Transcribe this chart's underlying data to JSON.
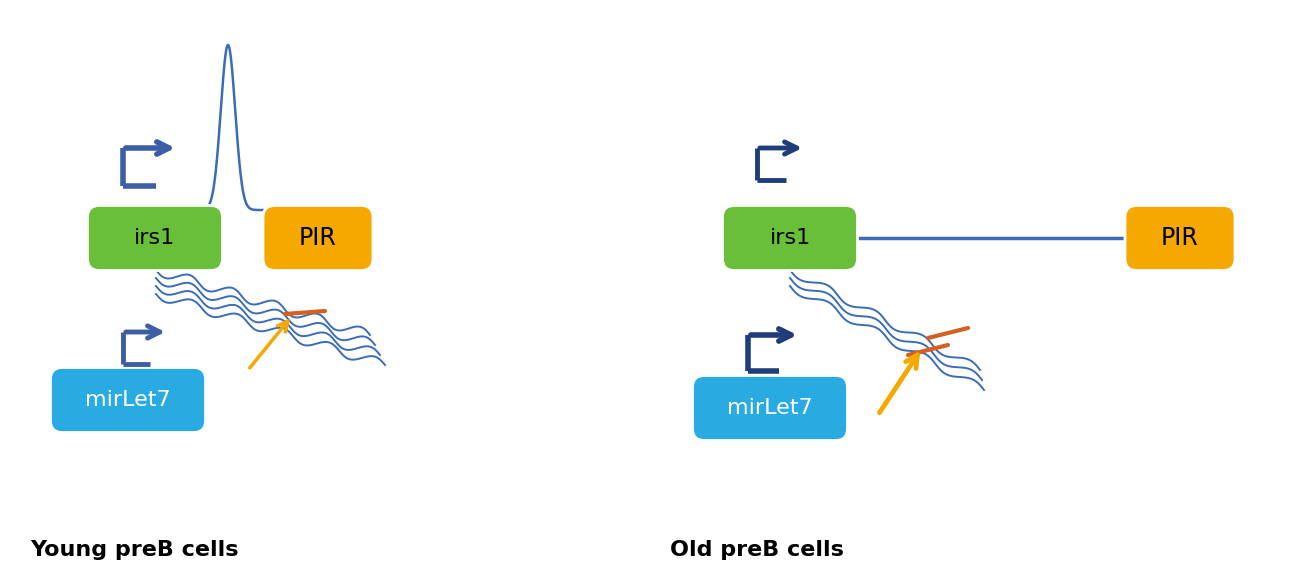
{
  "panel_left_label": "Young preB cells",
  "panel_right_label": "Old preB cells",
  "irs1_label": "irs1",
  "pir_label": "PIR",
  "mirlet7_label": "mirLet7",
  "green_color": "#6abf3a",
  "orange_color": "#f5a800",
  "cyan_color": "#29abe2",
  "dark_blue_promo": "#1f3d7a",
  "medium_blue_promo": "#3b5ea6",
  "line_blue": "#3b6cb7",
  "orange_line": "#d45f20",
  "arrow_orange": "#f5a800",
  "bg_color": "#ffffff"
}
